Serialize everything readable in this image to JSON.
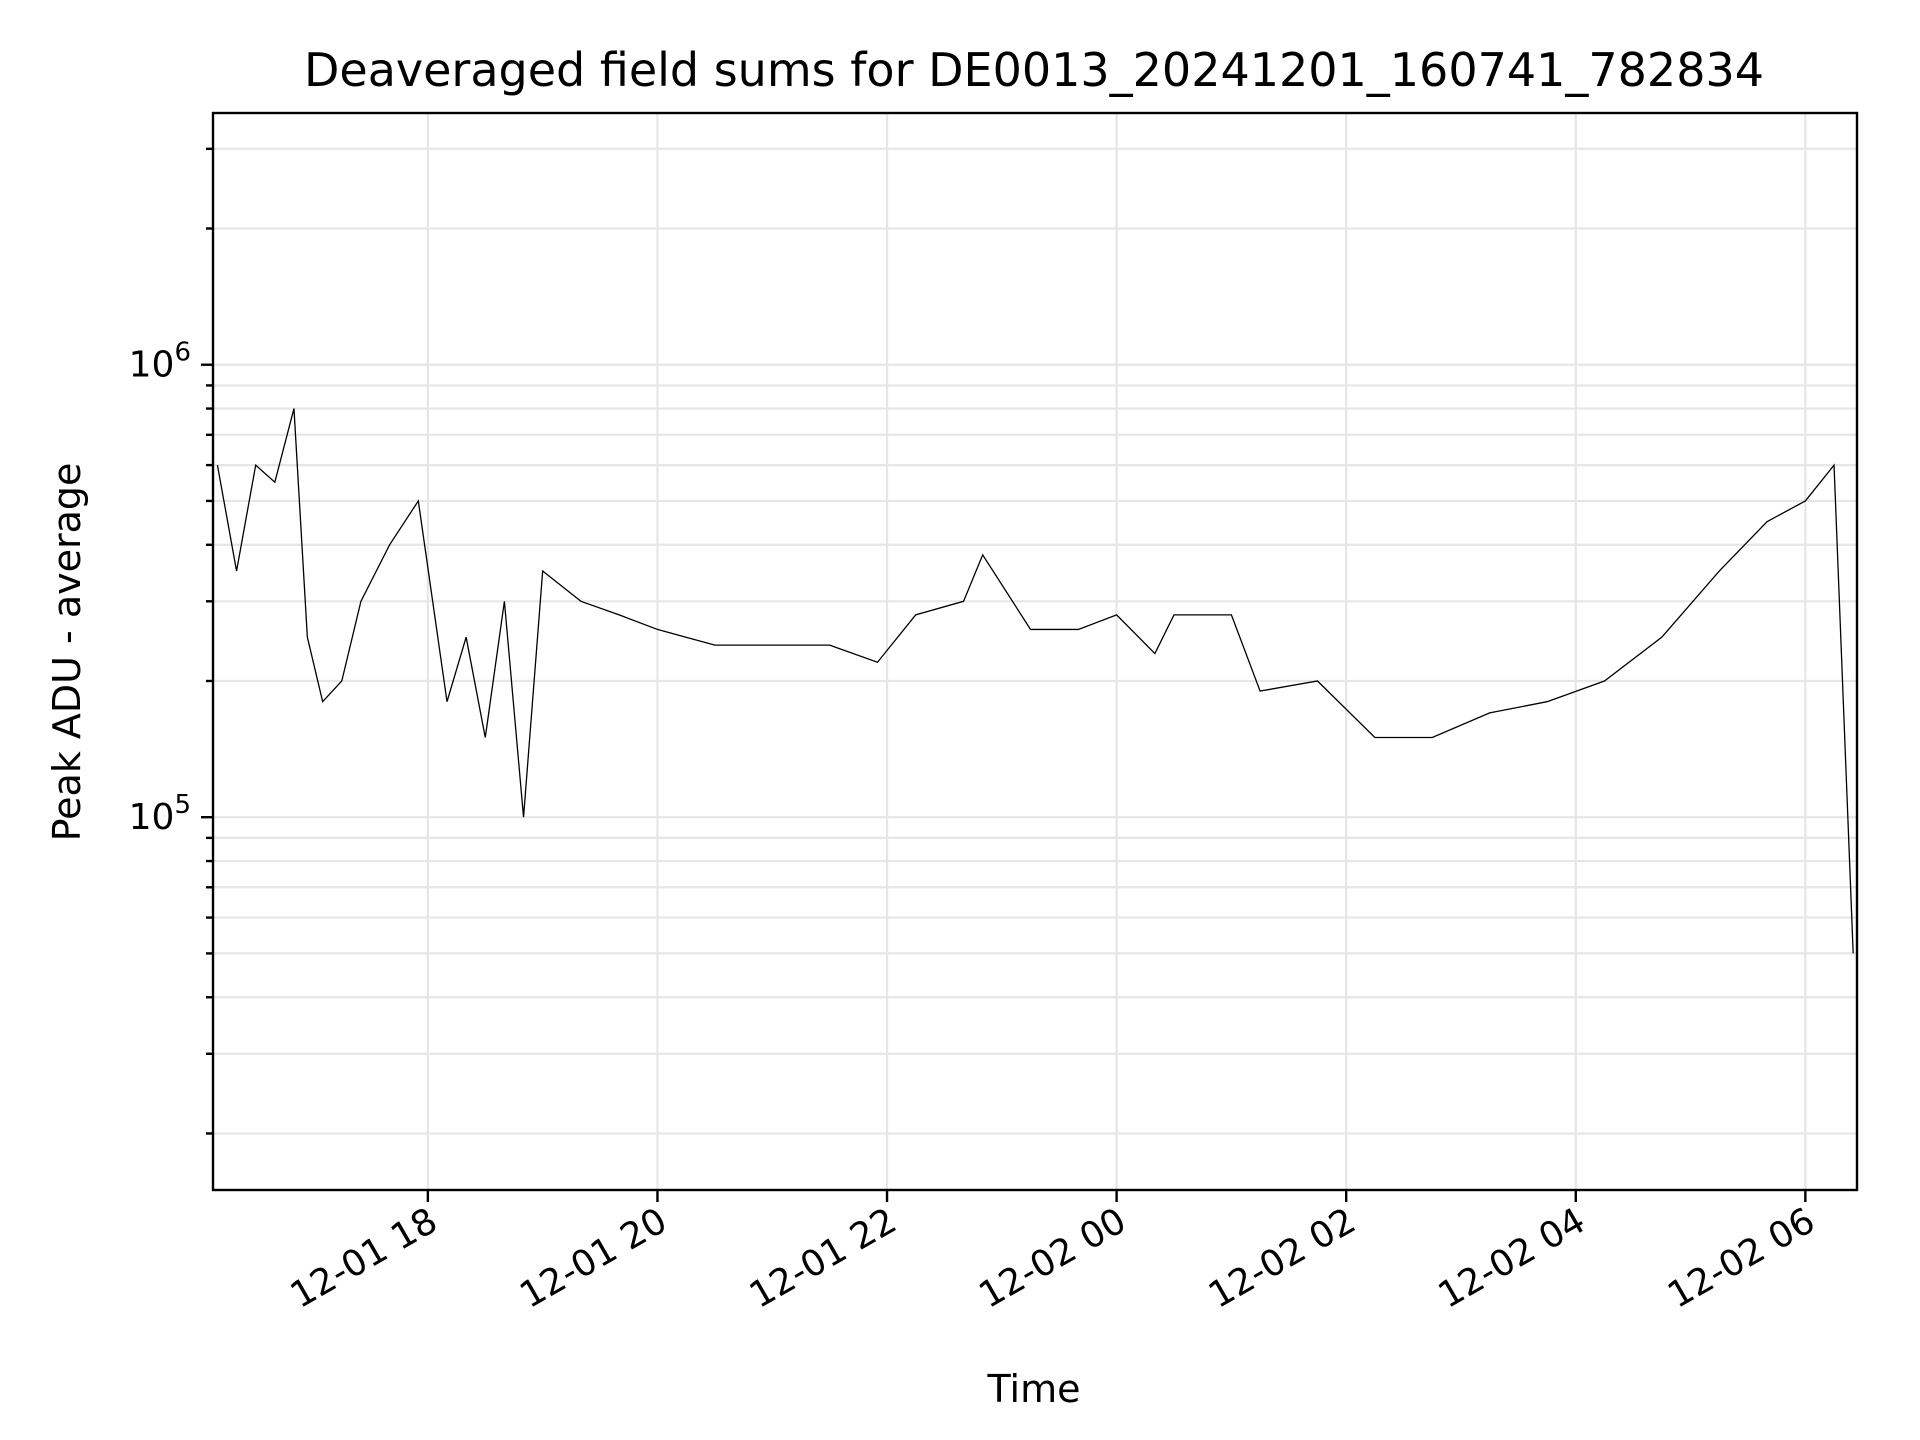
{
  "chart_data": {
    "type": "line",
    "title": "Deaveraged field sums for DE0013_20241201_160741_782834",
    "xlabel": "Time",
    "ylabel": "Peak ADU - average",
    "yscale": "log",
    "grid": true,
    "xlim": [
      "2024-12-01T16:07:41",
      "2024-12-02T06:27:00"
    ],
    "ylim": [
      15000,
      3600000
    ],
    "x_ticks": [
      {
        "value": "2024-12-01T18:00:00",
        "label": "12-01 18"
      },
      {
        "value": "2024-12-01T20:00:00",
        "label": "12-01 20"
      },
      {
        "value": "2024-12-01T22:00:00",
        "label": "12-01 22"
      },
      {
        "value": "2024-12-02T00:00:00",
        "label": "12-02 00"
      },
      {
        "value": "2024-12-02T02:00:00",
        "label": "12-02 02"
      },
      {
        "value": "2024-12-02T04:00:00",
        "label": "12-02 04"
      },
      {
        "value": "2024-12-02T06:00:00",
        "label": "12-02 06"
      }
    ],
    "y_ticks": [
      {
        "value": 100000,
        "base": "10",
        "exp": "5"
      },
      {
        "value": 1000000,
        "base": "10",
        "exp": "6"
      }
    ],
    "series": [
      {
        "color": "#000000",
        "x": [
          "2024-12-01T16:10",
          "2024-12-01T16:20",
          "2024-12-01T16:30",
          "2024-12-01T16:40",
          "2024-12-01T16:50",
          "2024-12-01T16:57",
          "2024-12-01T17:05",
          "2024-12-01T17:15",
          "2024-12-01T17:25",
          "2024-12-01T17:40",
          "2024-12-01T17:55",
          "2024-12-01T18:10",
          "2024-12-01T18:20",
          "2024-12-01T18:30",
          "2024-12-01T18:40",
          "2024-12-01T18:50",
          "2024-12-01T19:00",
          "2024-12-01T19:20",
          "2024-12-01T19:40",
          "2024-12-01T20:00",
          "2024-12-01T20:30",
          "2024-12-01T21:00",
          "2024-12-01T21:30",
          "2024-12-01T21:55",
          "2024-12-01T22:15",
          "2024-12-01T22:40",
          "2024-12-01T22:50",
          "2024-12-01T23:15",
          "2024-12-01T23:40",
          "2024-12-02T00:00",
          "2024-12-02T00:20",
          "2024-12-02T00:30",
          "2024-12-02T01:00",
          "2024-12-02T01:15",
          "2024-12-02T01:45",
          "2024-12-02T02:15",
          "2024-12-02T02:45",
          "2024-12-02T03:15",
          "2024-12-02T03:45",
          "2024-12-02T04:15",
          "2024-12-02T04:45",
          "2024-12-02T05:15",
          "2024-12-02T05:40",
          "2024-12-02T06:00",
          "2024-12-02T06:15",
          "2024-12-02T06:25"
        ],
        "y": [
          600000,
          350000,
          600000,
          550000,
          800000,
          250000,
          180000,
          200000,
          300000,
          400000,
          500000,
          180000,
          250000,
          150000,
          300000,
          100000,
          350000,
          300000,
          280000,
          260000,
          240000,
          240000,
          240000,
          220000,
          280000,
          300000,
          380000,
          260000,
          260000,
          280000,
          230000,
          280000,
          280000,
          190000,
          200000,
          150000,
          150000,
          170000,
          180000,
          200000,
          250000,
          350000,
          450000,
          500000,
          600000,
          50000
        ]
      }
    ]
  }
}
